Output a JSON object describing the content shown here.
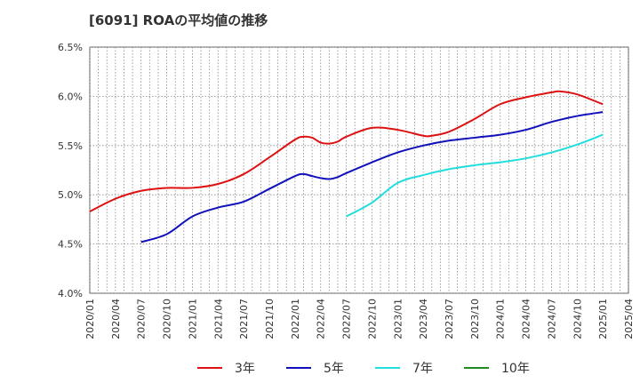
{
  "chart_data": {
    "type": "line",
    "title": "[6091]  ROAの平均値の推移",
    "xlabel": "",
    "ylabel": "",
    "x_ticks": [
      "2020/01",
      "2020/04",
      "2020/07",
      "2020/10",
      "2021/01",
      "2021/04",
      "2021/07",
      "2021/10",
      "2022/01",
      "2022/04",
      "2022/07",
      "2022/10",
      "2023/01",
      "2023/04",
      "2023/07",
      "2023/10",
      "2024/01",
      "2024/04",
      "2024/07",
      "2024/10",
      "2025/01",
      "2025/04"
    ],
    "x_range": [
      "2020/01",
      "2025/04"
    ],
    "y_ticks": [
      "4.0%",
      "4.5%",
      "5.0%",
      "5.5%",
      "6.0%",
      "6.5%"
    ],
    "ylim": [
      4.0,
      6.5
    ],
    "grid": true,
    "legend_position": "bottom",
    "series": [
      {
        "name": "3年",
        "color": "#dd1111",
        "points": [
          [
            "2020/01",
            4.83
          ],
          [
            "2020/04",
            4.96
          ],
          [
            "2020/07",
            5.04
          ],
          [
            "2020/10",
            5.07
          ],
          [
            "2021/01",
            5.07
          ],
          [
            "2021/04",
            5.11
          ],
          [
            "2021/07",
            5.21
          ],
          [
            "2021/10",
            5.38
          ],
          [
            "2022/01",
            5.56
          ],
          [
            "2022/02",
            5.59
          ],
          [
            "2022/03",
            5.58
          ],
          [
            "2022/04",
            5.53
          ],
          [
            "2022/05",
            5.52
          ],
          [
            "2022/06",
            5.54
          ],
          [
            "2022/07",
            5.59
          ],
          [
            "2022/10",
            5.68
          ],
          [
            "2023/01",
            5.66
          ],
          [
            "2023/04",
            5.6
          ],
          [
            "2023/05",
            5.6
          ],
          [
            "2023/07",
            5.64
          ],
          [
            "2023/10",
            5.77
          ],
          [
            "2024/01",
            5.92
          ],
          [
            "2024/04",
            5.99
          ],
          [
            "2024/07",
            6.04
          ],
          [
            "2024/08",
            6.05
          ],
          [
            "2024/10",
            6.02
          ],
          [
            "2025/01",
            5.92
          ]
        ]
      },
      {
        "name": "5年",
        "color": "#1111bb",
        "points": [
          [
            "2020/07",
            4.52
          ],
          [
            "2020/10",
            4.6
          ],
          [
            "2021/01",
            4.78
          ],
          [
            "2021/04",
            4.87
          ],
          [
            "2021/07",
            4.93
          ],
          [
            "2021/10",
            5.06
          ],
          [
            "2022/01",
            5.19
          ],
          [
            "2022/02",
            5.21
          ],
          [
            "2022/03",
            5.19
          ],
          [
            "2022/04",
            5.17
          ],
          [
            "2022/05",
            5.16
          ],
          [
            "2022/06",
            5.18
          ],
          [
            "2022/07",
            5.22
          ],
          [
            "2022/10",
            5.33
          ],
          [
            "2023/01",
            5.43
          ],
          [
            "2023/04",
            5.5
          ],
          [
            "2023/07",
            5.55
          ],
          [
            "2023/10",
            5.58
          ],
          [
            "2024/01",
            5.61
          ],
          [
            "2024/04",
            5.66
          ],
          [
            "2024/07",
            5.74
          ],
          [
            "2024/10",
            5.8
          ],
          [
            "2025/01",
            5.84
          ]
        ]
      },
      {
        "name": "7年",
        "color": "#22dddd",
        "points": [
          [
            "2022/07",
            4.78
          ],
          [
            "2022/10",
            4.92
          ],
          [
            "2023/01",
            5.12
          ],
          [
            "2023/04",
            5.2
          ],
          [
            "2023/07",
            5.26
          ],
          [
            "2023/10",
            5.3
          ],
          [
            "2024/01",
            5.33
          ],
          [
            "2024/04",
            5.37
          ],
          [
            "2024/07",
            5.43
          ],
          [
            "2024/10",
            5.51
          ],
          [
            "2025/01",
            5.61
          ]
        ]
      },
      {
        "name": "10年",
        "color": "#228822",
        "points": []
      }
    ]
  }
}
